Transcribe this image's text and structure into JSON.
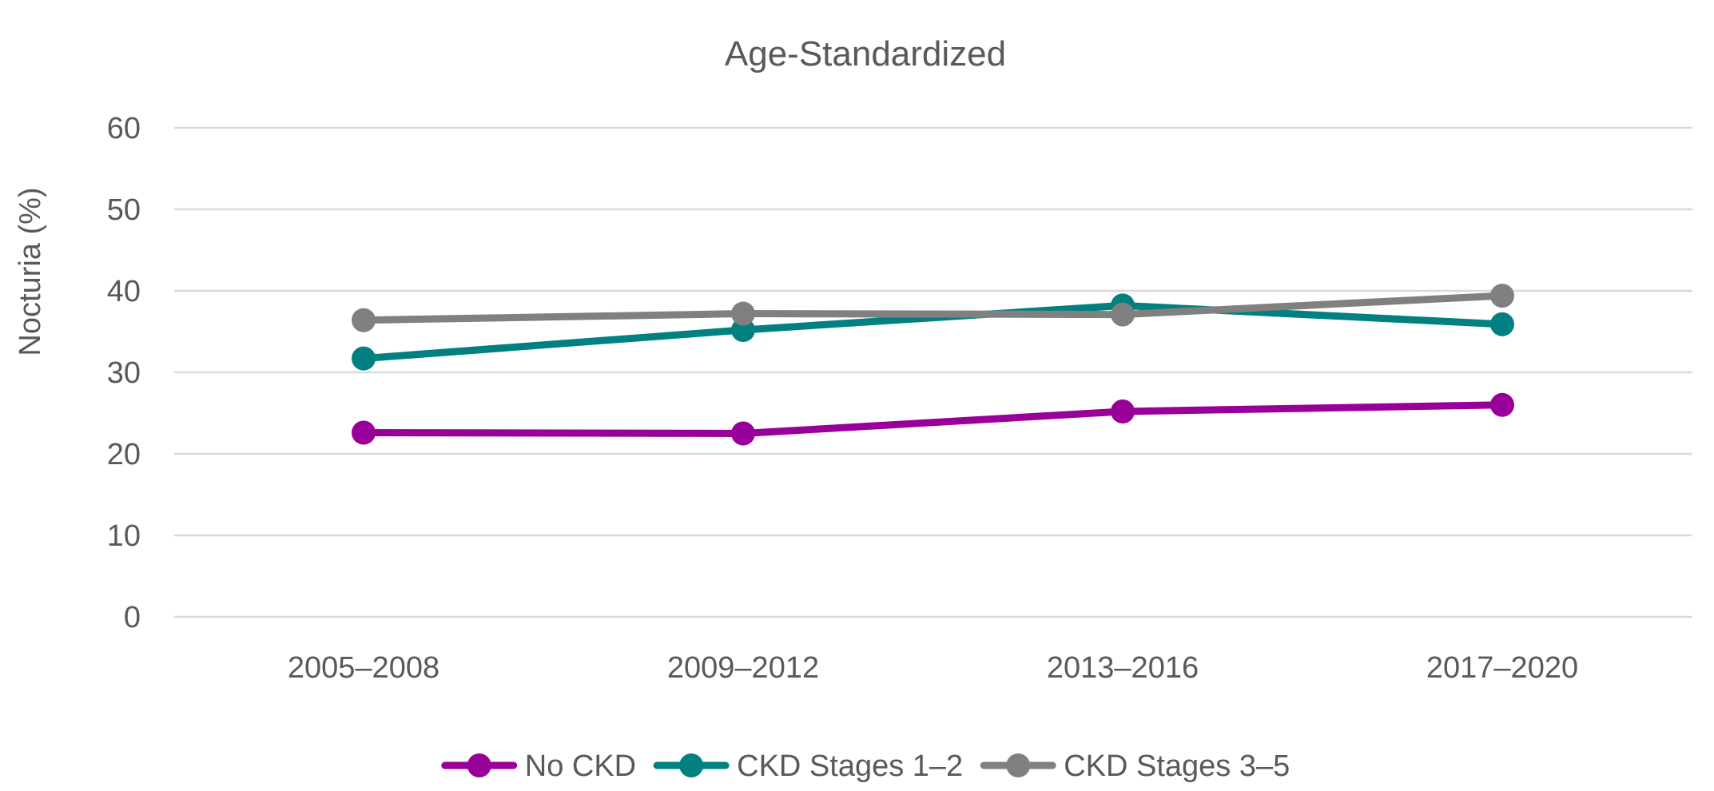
{
  "chart_data": {
    "type": "line",
    "title": "Age-Standardized",
    "xlabel": "",
    "ylabel": "Nocturia (%)",
    "ylim": [
      0,
      60
    ],
    "yticks": [
      "0",
      "10",
      "20",
      "30",
      "40",
      "50",
      "60"
    ],
    "grid": true,
    "legend_position": "bottom",
    "categories": [
      "2005–2008",
      "2009–2012",
      "2013–2016",
      "2017–2020"
    ],
    "series": [
      {
        "name": "No CKD",
        "color": "#990099",
        "values": [
          22.6,
          22.5,
          25.2,
          26.0
        ]
      },
      {
        "name": "CKD Stages 1–2",
        "color": "#008080",
        "values": [
          31.7,
          35.2,
          38.2,
          35.9
        ]
      },
      {
        "name": "CKD Stages 3–5",
        "color": "#808080",
        "values": [
          36.4,
          37.2,
          37.1,
          39.4
        ]
      }
    ]
  }
}
